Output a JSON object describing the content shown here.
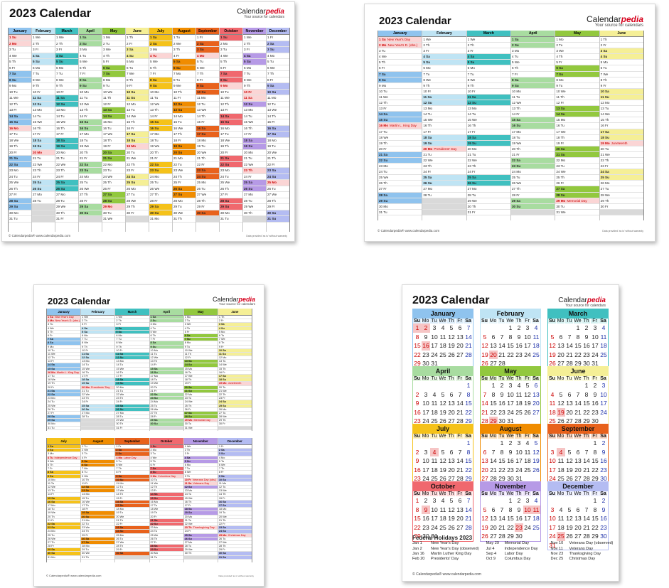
{
  "calendars": [
    {
      "title": "2023 Calendar",
      "brand_name": "Calendar",
      "brand_accent": "pedia",
      "tagline": "Your source for calendars",
      "footer": "© Calendarpedia®   www.calendarpedia.com",
      "footer_right": "Data provided 'as is' without warranty"
    },
    {
      "title": "2023 Calendar",
      "brand_name": "Calendar",
      "brand_accent": "pedia",
      "tagline": "Your source for calendars",
      "footer": "© Calendarpedia®   www.calendarpedia.com",
      "footer_right": "Data provided 'as is' without warranty"
    },
    {
      "title": "2023 Calendar",
      "brand_name": "Calendar",
      "brand_accent": "pedia",
      "tagline": "Your source for calendars",
      "footer": "© Calendarpedia®   www.calendarpedia.com",
      "footer_right": "Data provided 'as is' without warranty"
    },
    {
      "title": "2023 Calendar",
      "brand_name": "Calendar",
      "brand_accent": "pedia",
      "tagline": "Your source for calendars",
      "footer": "© Calendarpedia®   www.calendarpedia.com"
    }
  ],
  "months": [
    "January",
    "February",
    "March",
    "April",
    "May",
    "June",
    "July",
    "August",
    "September",
    "October",
    "November",
    "December"
  ],
  "month_colors": [
    "#8fc3ee",
    "#bfe4f4",
    "#40c0c0",
    "#a8dca0",
    "#92c83e",
    "#f5ef96",
    "#f5c21a",
    "#f08c00",
    "#e8621c",
    "#f0686e",
    "#b69ae6",
    "#b4bcf2"
  ],
  "month_light_colors": [
    "#dcecf9",
    "#e9f6fb",
    "#d6f1f1",
    "#e6f5e3",
    "#e3f0cf",
    "#fcfbe0",
    "#fdf0c4",
    "#fce2bf",
    "#f9d8c6",
    "#fcdadb",
    "#ece4f9",
    "#eceefc"
  ],
  "weekday_abbr": [
    "Su",
    "Mo",
    "Tu",
    "We",
    "Th",
    "Fr",
    "Sa"
  ],
  "holidays_short": {
    "1-1": "New Year's Day",
    "1-2": "New Year's D. (obs.)",
    "1-16": "Martin L. King Day",
    "2-20": "Presidents' Day",
    "5-29": "Memorial Day",
    "6-19": "Juneteenth",
    "7-4": "Independence Day",
    "9-4": "Labor Day",
    "10-9": "Columbus Day",
    "11-10": "Veterans Day (obs.)",
    "11-11": "Veterans Day",
    "11-23": "Thanksgiving Day",
    "12-25": "Christmas Day"
  },
  "federal_holidays": {
    "title": "Federal Holidays 2023",
    "col1": [
      {
        "date": "Jan 1",
        "name": "New Year's Day"
      },
      {
        "date": "Jan 2",
        "name": "New Year's Day (observed)"
      },
      {
        "date": "Jan 16",
        "name": "Martin Luther King Day"
      },
      {
        "date": "Feb 20",
        "name": "Presidents' Day"
      }
    ],
    "col2": [
      {
        "date": "May 29",
        "name": "Memorial Day"
      },
      {
        "date": "Jul 4",
        "name": "Independence Day"
      },
      {
        "date": "Sep 4",
        "name": "Labor Day"
      },
      {
        "date": "Oct 9",
        "name": "Columbus Day"
      }
    ],
    "col3": [
      {
        "date": "Nov 10",
        "name": "Veterans Day (observed)"
      },
      {
        "date": "Nov 11",
        "name": "Veterans Day"
      },
      {
        "date": "Nov 23",
        "name": "Thanksgiving Day"
      },
      {
        "date": "Dec 25",
        "name": "Christmas Day"
      }
    ]
  }
}
